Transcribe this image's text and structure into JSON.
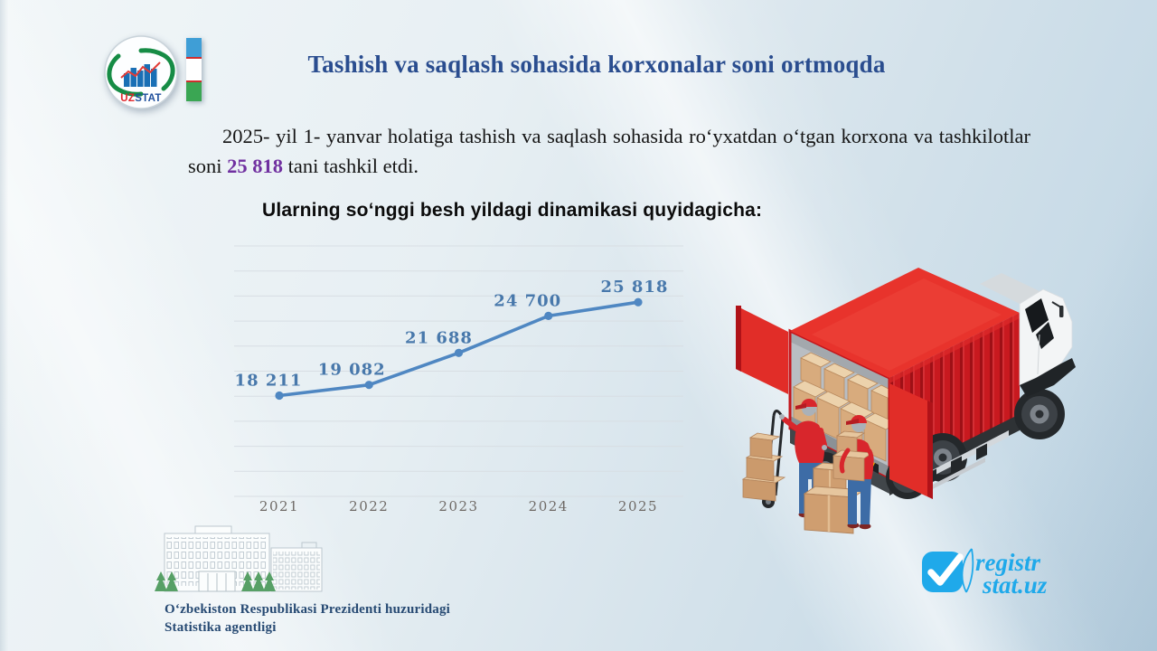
{
  "header": {
    "title": "Tashish va saqlash sohasida korxonalar soni ortmoqda",
    "logo_uz": "UZ",
    "logo_stat": "STAT"
  },
  "intro": {
    "text_before": "2025- yil 1- yanvar holatiga tashish va saqlash sohasida roʻyxatdan oʻtgan korxona  va tashkilotlar soni ",
    "highlight": "25 818",
    "text_after": " tani tashkil etdi."
  },
  "chart_heading": "Ularning soʻnggi besh yildagi dinamikasi quyidagicha:",
  "chart_data": {
    "type": "line",
    "title": "",
    "xlabel": "",
    "ylabel": "",
    "categories": [
      "2021",
      "2022",
      "2023",
      "2024",
      "2025"
    ],
    "values": [
      18211,
      19082,
      21688,
      24700,
      25818
    ],
    "point_labels": [
      "18 211",
      "19 082",
      "21 688",
      "24 700",
      "25 818"
    ],
    "ylim": [
      10000,
      30400
    ],
    "gridlines": 11,
    "grid": true,
    "legend": false
  },
  "footer": {
    "agency_line1": "Oʻzbekiston Respublikasi Prezidenti huzuridagi",
    "agency_line2": "Statistika agentligi",
    "brand_line1": "registr",
    "brand_line2": "stat.uz"
  },
  "colors": {
    "title": "#2a4d8f",
    "highlight": "#7030a0",
    "chart_line": "#4f87c2",
    "chart_label": "#4878ab",
    "axis_label": "#6f6a66",
    "gridline": "#d8dee3",
    "brand_blue": "#1fa9ea"
  }
}
